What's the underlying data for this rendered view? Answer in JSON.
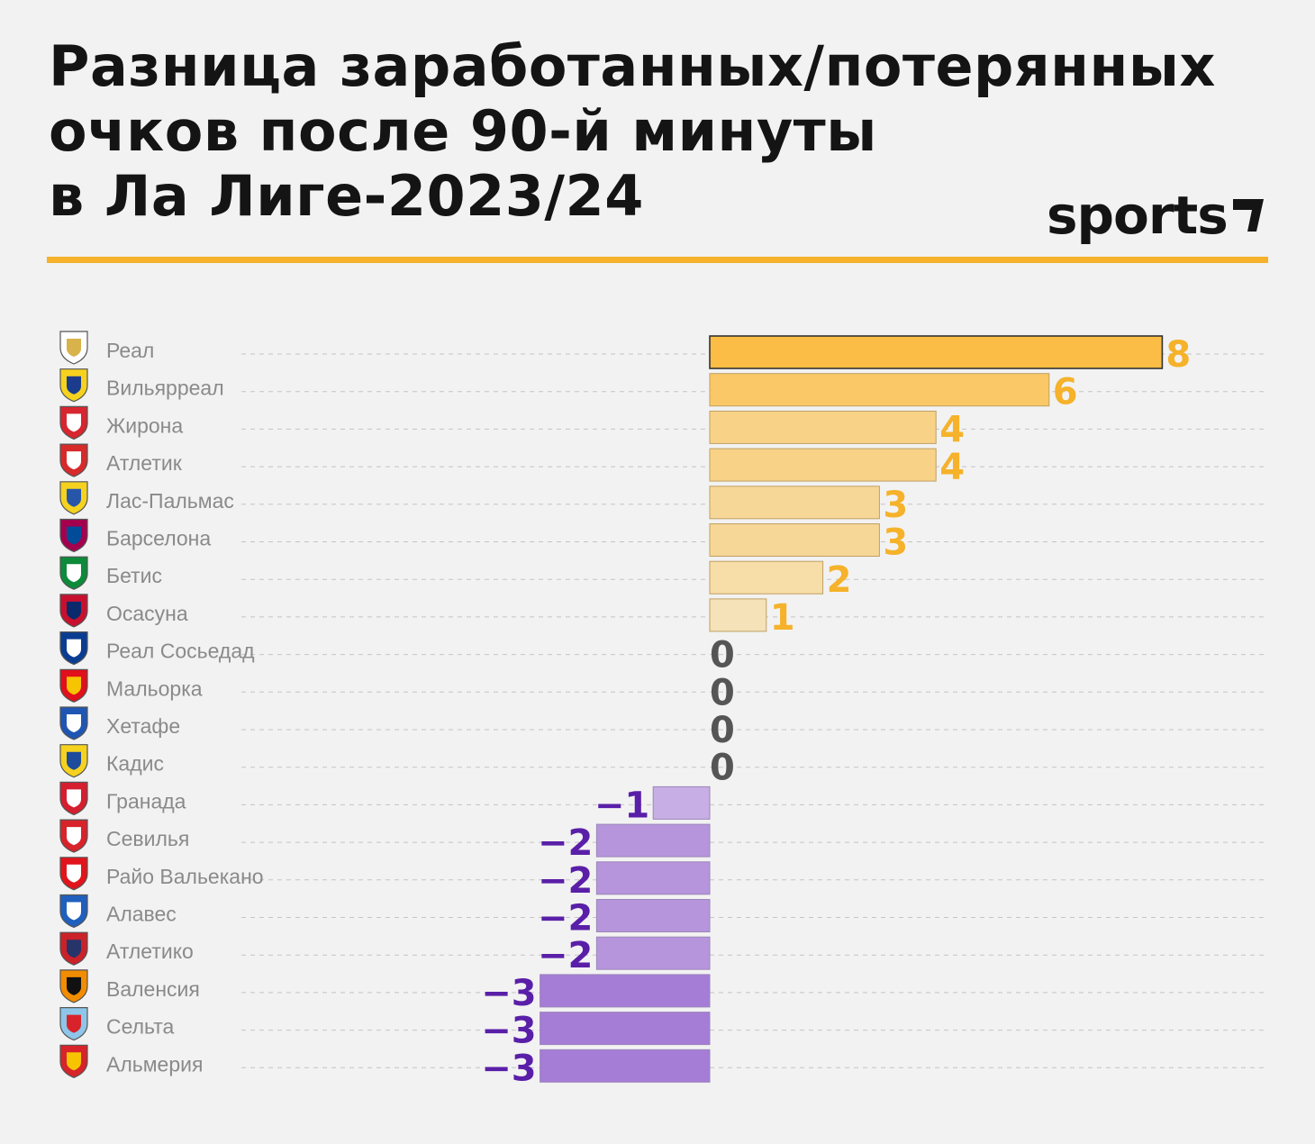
{
  "header": {
    "title_lines": [
      "Разница заработанных/потерянных",
      "очков после 90-й минуты",
      "в Ла Лиге-2023/24"
    ],
    "brand": "sports"
  },
  "colors": {
    "positive_strong": "#fbbd45",
    "positive_light": "#f6e2b8",
    "negative_light": "#c7aee4",
    "negative_strong": "#a57cd6",
    "positive_text": "#f5b22a",
    "negative_text": "#5a1fa8",
    "zero_text": "#555555",
    "accent_rule": "#f5b22a"
  },
  "chart_data": {
    "type": "bar",
    "orientation": "horizontal",
    "title": "Разница заработанных/потерянных очков после 90-й минуты в Ла Лиге-2023/24",
    "categories": [
      "Реал",
      "Вильярреал",
      "Жирона",
      "Атлетик",
      "Лас-Пальмас",
      "Барселона",
      "Бетис",
      "Осасуна",
      "Реал Сосьедад",
      "Мальорка",
      "Хетафе",
      "Кадис",
      "Гранада",
      "Севилья",
      "Райо Вальекано",
      "Алавес",
      "Атлетико",
      "Валенсия",
      "Сельта",
      "Альмерия"
    ],
    "values": [
      8,
      6,
      4,
      4,
      3,
      3,
      2,
      1,
      0,
      0,
      0,
      0,
      -1,
      -2,
      -2,
      -2,
      -2,
      -3,
      -3,
      -3
    ],
    "xlim": [
      -3,
      8
    ],
    "grid": true,
    "legend": "none",
    "icons": [
      "real-madrid-crest-icon",
      "villarreal-crest-icon",
      "girona-crest-icon",
      "athletic-crest-icon",
      "las-palmas-crest-icon",
      "barcelona-crest-icon",
      "betis-crest-icon",
      "osasuna-crest-icon",
      "real-sociedad-crest-icon",
      "mallorca-crest-icon",
      "getafe-crest-icon",
      "cadiz-crest-icon",
      "granada-crest-icon",
      "sevilla-crest-icon",
      "rayo-vallecano-crest-icon",
      "alaves-crest-icon",
      "atletico-crest-icon",
      "valencia-crest-icon",
      "celta-crest-icon",
      "almeria-crest-icon"
    ],
    "icon_colors": [
      [
        "#ffffff",
        "#d8b24a"
      ],
      [
        "#f6d21e",
        "#1b3c8c"
      ],
      [
        "#d7262f",
        "#ffffff"
      ],
      [
        "#d72a2a",
        "#ffffff"
      ],
      [
        "#f5d21f",
        "#2756a8"
      ],
      [
        "#a5004d",
        "#004c98"
      ],
      [
        "#0d8a3a",
        "#ffffff"
      ],
      [
        "#c8102e",
        "#0a2a6b"
      ],
      [
        "#0a3d91",
        "#ffffff"
      ],
      [
        "#e0101c",
        "#f6c400"
      ],
      [
        "#1f56b3",
        "#ffffff"
      ],
      [
        "#f6d21e",
        "#1e4b9c"
      ],
      [
        "#d51e2e",
        "#ffffff"
      ],
      [
        "#d8232a",
        "#ffffff"
      ],
      [
        "#e1141b",
        "#ffffff"
      ],
      [
        "#1f5fbe",
        "#ffffff"
      ],
      [
        "#cb2128",
        "#26346a"
      ],
      [
        "#f28c00",
        "#111111"
      ],
      [
        "#8ec6ea",
        "#d8232a"
      ],
      [
        "#d8232a",
        "#f6c400"
      ]
    ]
  }
}
